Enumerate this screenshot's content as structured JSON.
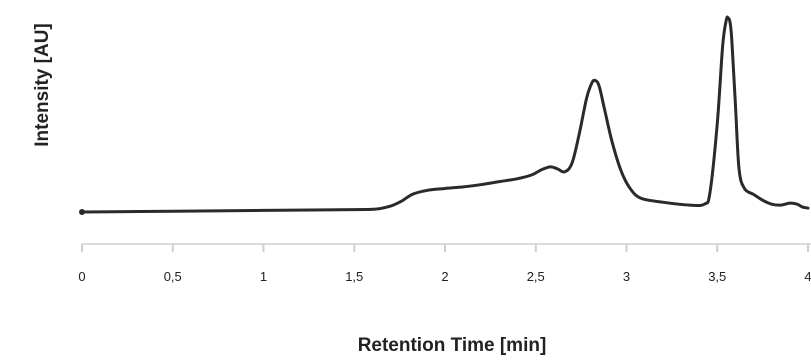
{
  "chart_data": {
    "type": "line",
    "title": "",
    "xlabel": "Retention Time [min]",
    "ylabel": "Intensity [AU]",
    "xlim": [
      0,
      4
    ],
    "ylim": [
      0,
      1
    ],
    "grid": false,
    "legend": "none",
    "x_ticks": [
      0,
      0.5,
      1,
      1.5,
      2,
      2.5,
      3,
      3.5,
      4
    ],
    "x_tick_labels": [
      "0",
      "0,5",
      "1",
      "1,5",
      "2",
      "2,5",
      "3",
      "3,5",
      "4"
    ],
    "series": [
      {
        "color": "#2a2a2a",
        "x": [
          0,
          0.5,
          1.0,
          1.5,
          1.62,
          1.7,
          1.76,
          1.82,
          1.9,
          2.0,
          2.1,
          2.2,
          2.3,
          2.4,
          2.48,
          2.53,
          2.58,
          2.62,
          2.66,
          2.7,
          2.74,
          2.78,
          2.81,
          2.83,
          2.85,
          2.88,
          2.92,
          2.97,
          3.02,
          3.08,
          3.2,
          3.35,
          3.43,
          3.46,
          3.5,
          3.53,
          3.55,
          3.56,
          3.57,
          3.58,
          3.6,
          3.62,
          3.65,
          3.7,
          3.75,
          3.8,
          3.85,
          3.9,
          3.94,
          3.97,
          4.0
        ],
        "y": [
          0.0,
          0.004,
          0.008,
          0.012,
          0.015,
          0.03,
          0.055,
          0.09,
          0.11,
          0.12,
          0.128,
          0.14,
          0.155,
          0.17,
          0.19,
          0.215,
          0.23,
          0.22,
          0.205,
          0.25,
          0.4,
          0.58,
          0.66,
          0.67,
          0.64,
          0.52,
          0.36,
          0.21,
          0.12,
          0.07,
          0.05,
          0.035,
          0.04,
          0.1,
          0.45,
          0.85,
          0.98,
          0.99,
          0.97,
          0.88,
          0.55,
          0.22,
          0.12,
          0.09,
          0.06,
          0.04,
          0.035,
          0.045,
          0.04,
          0.025,
          0.02
        ]
      }
    ]
  }
}
